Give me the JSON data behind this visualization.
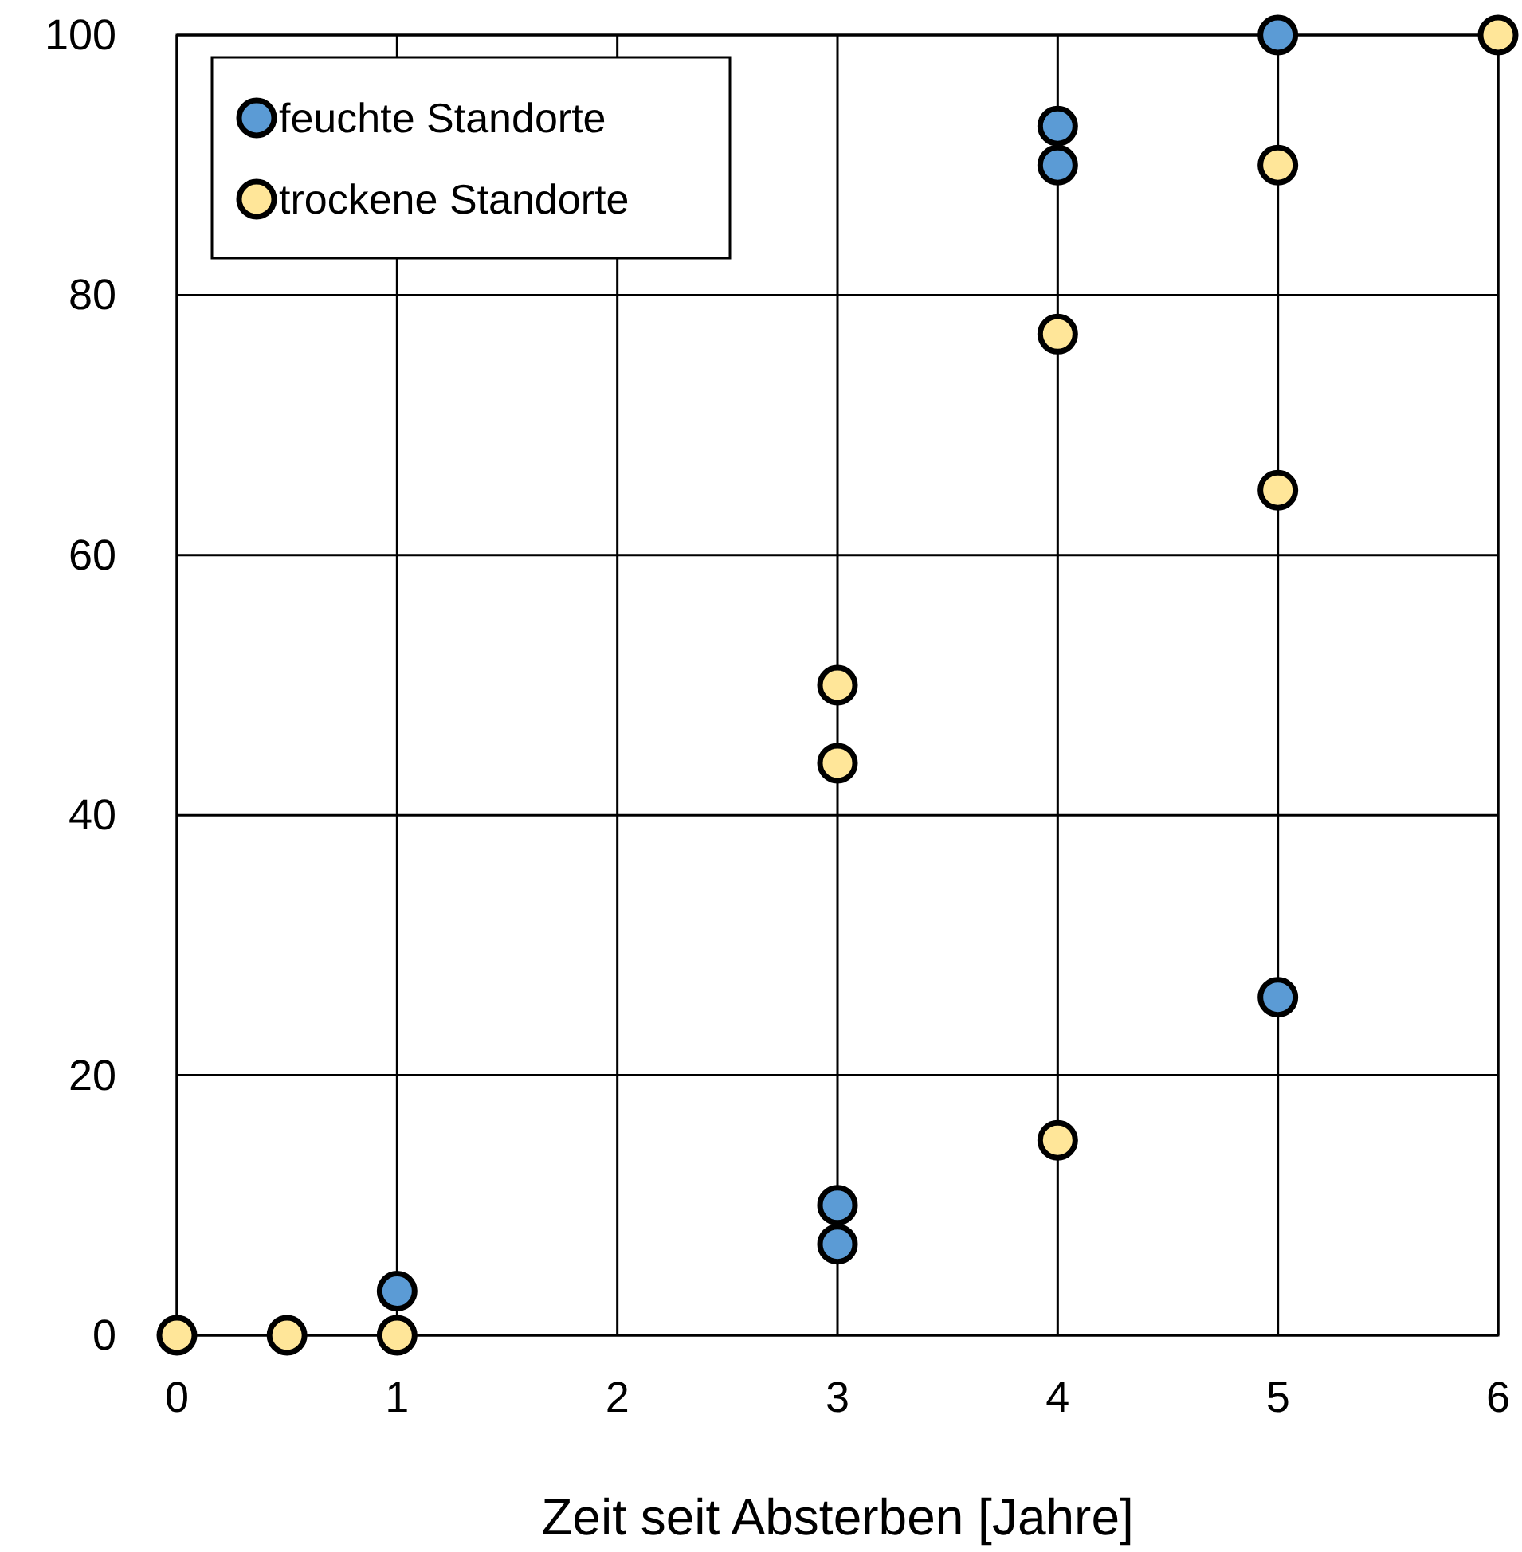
{
  "chart_data": {
    "type": "scatter",
    "xlabel": "Zeit seit Absterben [Jahre]",
    "xlim": [
      0,
      6
    ],
    "xticks": [
      0,
      1,
      2,
      3,
      4,
      5,
      6
    ],
    "ylim": [
      0,
      100
    ],
    "yticks": [
      0,
      20,
      40,
      60,
      80,
      100
    ],
    "grid": true,
    "legend": "top left",
    "marker": "circle",
    "series": [
      {
        "name": "feuchte Standorte",
        "color": "#5b9bd5",
        "x": [
          1,
          3,
          3,
          4,
          4,
          5,
          5
        ],
        "values": [
          3.4,
          10,
          7,
          93,
          90,
          100,
          26
        ]
      },
      {
        "name": "trockene Standorte",
        "color": "#ffe699",
        "x": [
          0,
          0.5,
          1,
          3,
          3,
          4,
          4,
          5,
          5,
          6
        ],
        "values": [
          0,
          0,
          0,
          50,
          44,
          77,
          15,
          90,
          65,
          100
        ]
      }
    ]
  }
}
